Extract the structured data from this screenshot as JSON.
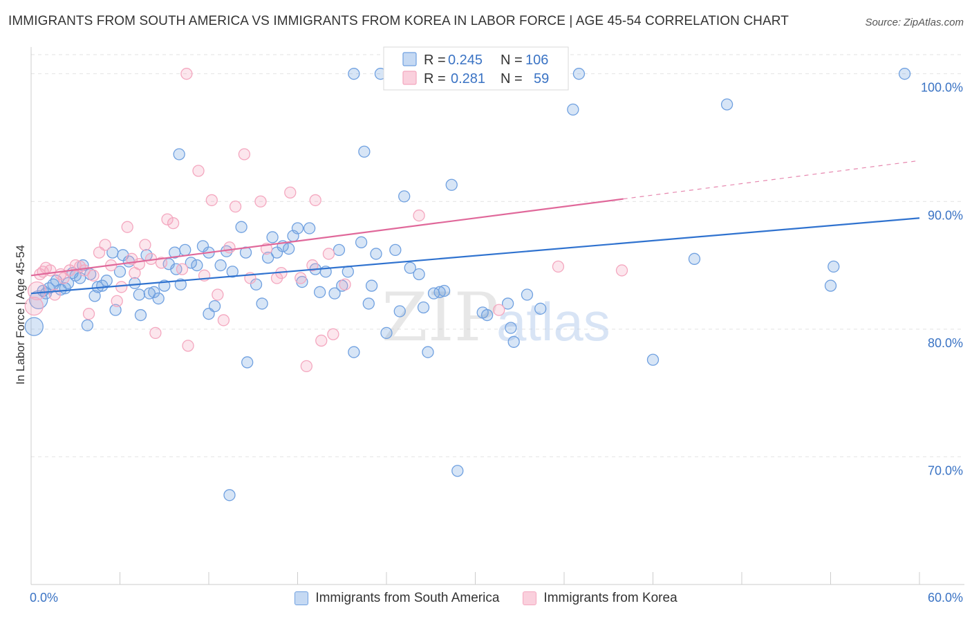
{
  "title": "IMMIGRANTS FROM SOUTH AMERICA VS IMMIGRANTS FROM KOREA IN LABOR FORCE | AGE 45-54 CORRELATION CHART",
  "source": "Source: ZipAtlas.com",
  "watermark": {
    "part1": "ZIP",
    "part2": "atlas"
  },
  "chart_data": {
    "type": "scatter",
    "title": "IMMIGRANTS FROM SOUTH AMERICA VS IMMIGRANTS FROM KOREA IN LABOR FORCE | AGE 45-54 CORRELATION CHART",
    "xlabel": "",
    "ylabel": "In Labor Force | Age 45-54",
    "xlim": [
      0,
      60
    ],
    "ylim": [
      60,
      101.5
    ],
    "x_tick_labels": [
      "0.0%",
      "60.0%"
    ],
    "y_ticks": [
      70,
      80,
      90,
      100
    ],
    "y_tick_labels": [
      "70.0%",
      "80.0%",
      "90.0%",
      "100.0%"
    ],
    "grid": true,
    "legend_position": "top-center",
    "series": [
      {
        "name": "Immigrants from South America",
        "color": "#6fa0e0",
        "line_color": "#2f72cf",
        "r_label": "R =",
        "r_value": "0.245",
        "n_label": "N =",
        "n_value": "106",
        "trend": {
          "x0": 0,
          "y0": 82.8,
          "x1": 60,
          "y1": 88.7,
          "dashed_from": null
        },
        "points": [
          [
            0.2,
            80.2
          ],
          [
            0.5,
            82.3
          ],
          [
            0.8,
            83.0
          ],
          [
            1.0,
            82.8
          ],
          [
            1.2,
            83.2
          ],
          [
            1.5,
            83.5
          ],
          [
            1.7,
            83.8
          ],
          [
            2.0,
            83.1
          ],
          [
            2.3,
            83.2
          ],
          [
            2.5,
            83.6
          ],
          [
            2.8,
            84.4
          ],
          [
            3.0,
            84.2
          ],
          [
            3.3,
            84.0
          ],
          [
            3.5,
            85.0
          ],
          [
            3.8,
            80.3
          ],
          [
            4.0,
            84.3
          ],
          [
            4.3,
            82.6
          ],
          [
            4.5,
            83.3
          ],
          [
            4.8,
            83.4
          ],
          [
            5.1,
            83.8
          ],
          [
            5.5,
            86.0
          ],
          [
            5.7,
            81.5
          ],
          [
            6.0,
            84.5
          ],
          [
            6.2,
            85.8
          ],
          [
            6.6,
            85.3
          ],
          [
            7.0,
            83.6
          ],
          [
            7.3,
            82.7
          ],
          [
            7.8,
            85.8
          ],
          [
            7.4,
            81.1
          ],
          [
            8.0,
            82.8
          ],
          [
            8.3,
            82.9
          ],
          [
            8.6,
            82.4
          ],
          [
            9.0,
            83.4
          ],
          [
            9.3,
            85.1
          ],
          [
            9.7,
            86.0
          ],
          [
            10.1,
            83.5
          ],
          [
            10.4,
            86.2
          ],
          [
            10.8,
            85.2
          ],
          [
            11.2,
            85.0
          ],
          [
            11.6,
            86.5
          ],
          [
            12.0,
            86.0
          ],
          [
            12.4,
            81.8
          ],
          [
            12.0,
            81.2
          ],
          [
            12.8,
            85.0
          ],
          [
            13.2,
            86.1
          ],
          [
            13.6,
            84.5
          ],
          [
            14.2,
            88.0
          ],
          [
            14.5,
            86.0
          ],
          [
            15.2,
            83.5
          ],
          [
            15.6,
            82.0
          ],
          [
            16.0,
            85.6
          ],
          [
            16.3,
            87.2
          ],
          [
            16.6,
            86.0
          ],
          [
            17.0,
            86.5
          ],
          [
            17.4,
            86.3
          ],
          [
            17.7,
            87.3
          ],
          [
            18.0,
            87.9
          ],
          [
            18.3,
            83.7
          ],
          [
            18.8,
            87.9
          ],
          [
            19.2,
            84.7
          ],
          [
            19.5,
            82.9
          ],
          [
            19.9,
            84.5
          ],
          [
            20.5,
            82.8
          ],
          [
            20.8,
            86.2
          ],
          [
            21.0,
            83.4
          ],
          [
            21.4,
            84.5
          ],
          [
            21.8,
            78.2
          ],
          [
            22.3,
            86.8
          ],
          [
            22.8,
            82.0
          ],
          [
            23.0,
            83.4
          ],
          [
            23.3,
            85.9
          ],
          [
            24.0,
            79.7
          ],
          [
            24.6,
            86.2
          ],
          [
            24.9,
            81.4
          ],
          [
            25.2,
            90.4
          ],
          [
            25.6,
            84.8
          ],
          [
            26.2,
            84.3
          ],
          [
            26.5,
            81.7
          ],
          [
            26.8,
            78.2
          ],
          [
            27.2,
            82.8
          ],
          [
            27.9,
            83.0
          ],
          [
            28.4,
            91.3
          ],
          [
            28.8,
            68.9
          ],
          [
            30.5,
            81.3
          ],
          [
            30.8,
            81.1
          ],
          [
            32.2,
            82.0
          ],
          [
            32.4,
            80.1
          ],
          [
            32.6,
            79.0
          ],
          [
            33.5,
            82.7
          ],
          [
            34.4,
            81.6
          ],
          [
            36.6,
            97.2
          ],
          [
            14.6,
            77.4
          ],
          [
            10.0,
            93.7
          ],
          [
            21.8,
            100.0
          ],
          [
            23.6,
            100.0
          ],
          [
            37.0,
            100.0
          ],
          [
            44.8,
            85.5
          ],
          [
            42.0,
            77.6
          ],
          [
            47.0,
            97.6
          ],
          [
            54.0,
            83.4
          ],
          [
            54.2,
            84.9
          ],
          [
            59.0,
            100.0
          ],
          [
            22.5,
            93.9
          ],
          [
            13.4,
            67.0
          ],
          [
            27.6,
            82.9
          ],
          [
            9.8,
            84.7
          ]
        ]
      },
      {
        "name": "Immigrants from Korea",
        "color": "#f4a7bf",
        "line_color": "#e0689a",
        "r_label": "R =",
        "r_value": "0.281",
        "n_label": "N =",
        "n_value": "59",
        "trend": {
          "x0": 0,
          "y0": 84.2,
          "x1": 60,
          "y1": 93.2,
          "dashed_from": 40.0
        },
        "points": [
          [
            0.2,
            81.8
          ],
          [
            0.4,
            83.0
          ],
          [
            0.6,
            84.3
          ],
          [
            0.8,
            84.5
          ],
          [
            1.0,
            84.8
          ],
          [
            1.3,
            84.6
          ],
          [
            1.6,
            82.7
          ],
          [
            2.0,
            84.3
          ],
          [
            2.2,
            84.0
          ],
          [
            2.6,
            84.6
          ],
          [
            3.0,
            85.0
          ],
          [
            3.3,
            84.9
          ],
          [
            3.6,
            84.6
          ],
          [
            3.9,
            81.2
          ],
          [
            4.2,
            84.2
          ],
          [
            4.6,
            86.0
          ],
          [
            5.0,
            86.6
          ],
          [
            5.4,
            85.0
          ],
          [
            5.8,
            82.2
          ],
          [
            6.1,
            83.3
          ],
          [
            6.5,
            88.0
          ],
          [
            6.8,
            85.5
          ],
          [
            7.0,
            84.4
          ],
          [
            7.3,
            85.1
          ],
          [
            7.7,
            86.6
          ],
          [
            8.1,
            85.5
          ],
          [
            8.4,
            79.7
          ],
          [
            8.8,
            85.2
          ],
          [
            9.2,
            88.6
          ],
          [
            9.6,
            88.3
          ],
          [
            10.2,
            84.7
          ],
          [
            10.6,
            78.7
          ],
          [
            11.3,
            92.4
          ],
          [
            11.7,
            84.2
          ],
          [
            12.2,
            90.1
          ],
          [
            12.6,
            82.7
          ],
          [
            13.0,
            80.7
          ],
          [
            13.4,
            86.4
          ],
          [
            13.8,
            89.6
          ],
          [
            14.4,
            93.7
          ],
          [
            14.8,
            84.0
          ],
          [
            15.5,
            90.0
          ],
          [
            15.9,
            86.3
          ],
          [
            16.6,
            84.0
          ],
          [
            16.9,
            84.4
          ],
          [
            17.5,
            90.7
          ],
          [
            18.2,
            84.0
          ],
          [
            18.6,
            77.1
          ],
          [
            19.2,
            90.1
          ],
          [
            19.6,
            79.1
          ],
          [
            20.1,
            85.9
          ],
          [
            20.4,
            79.6
          ],
          [
            21.2,
            83.5
          ],
          [
            26.2,
            88.9
          ],
          [
            31.6,
            81.5
          ],
          [
            35.6,
            84.9
          ],
          [
            39.9,
            84.6
          ],
          [
            10.5,
            100.0
          ],
          [
            19.0,
            85.0
          ]
        ]
      }
    ]
  }
}
